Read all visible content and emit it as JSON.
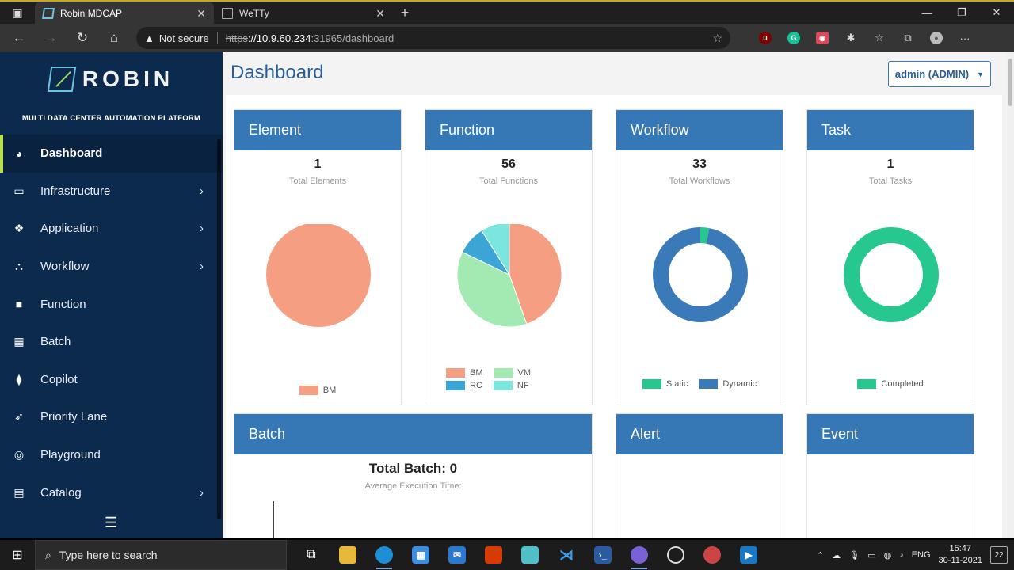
{
  "browser": {
    "tabs": [
      {
        "title": "Robin MDCAP",
        "active": true
      },
      {
        "title": "WeTTy",
        "active": false
      }
    ],
    "address": {
      "security": "Not secure",
      "scheme": "https",
      "host": "://10.9.60.234",
      "path": ":31965/dashboard"
    }
  },
  "sidebar": {
    "brand": "ROBIN",
    "tagline": "MULTI DATA CENTER AUTOMATION PLATFORM",
    "items": [
      {
        "label": "Dashboard",
        "icon": "dashboard-icon",
        "active": true,
        "submenu": false
      },
      {
        "label": "Infrastructure",
        "icon": "server-icon",
        "active": false,
        "submenu": true
      },
      {
        "label": "Application",
        "icon": "cubes-icon",
        "active": false,
        "submenu": true
      },
      {
        "label": "Workflow",
        "icon": "sitemap-icon",
        "active": false,
        "submenu": true
      },
      {
        "label": "Function",
        "icon": "briefcase-icon",
        "active": false,
        "submenu": false
      },
      {
        "label": "Batch",
        "icon": "batch-icon",
        "active": false,
        "submenu": false
      },
      {
        "label": "Copilot",
        "icon": "binoculars-icon",
        "active": false,
        "submenu": false
      },
      {
        "label": "Priority Lane",
        "icon": "rocket-icon",
        "active": false,
        "submenu": false
      },
      {
        "label": "Playground",
        "icon": "globe-icon",
        "active": false,
        "submenu": false
      },
      {
        "label": "Catalog",
        "icon": "catalog-icon",
        "active": false,
        "submenu": true
      }
    ]
  },
  "header": {
    "title": "Dashboard",
    "user": "admin (ADMIN)"
  },
  "cards": {
    "element": {
      "title": "Element",
      "count": "1",
      "caption": "Total Elements"
    },
    "function": {
      "title": "Function",
      "count": "56",
      "caption": "Total Functions"
    },
    "workflow": {
      "title": "Workflow",
      "count": "33",
      "caption": "Total Workflows"
    },
    "task": {
      "title": "Task",
      "count": "1",
      "caption": "Total Tasks"
    },
    "batch": {
      "title": "Batch",
      "total": "Total Batch: 0",
      "caption": "Average Execution Time:"
    },
    "alert": {
      "title": "Alert"
    },
    "event": {
      "title": "Event"
    }
  },
  "chart_data": [
    {
      "type": "pie",
      "title": "Element",
      "categories": [
        "BM"
      ],
      "values": [
        1
      ],
      "colors": [
        "#f59e82"
      ]
    },
    {
      "type": "pie",
      "title": "Function",
      "categories": [
        "BM",
        "VM",
        "RC",
        "NF"
      ],
      "values": [
        25,
        21,
        5,
        5
      ],
      "colors": [
        "#f59e82",
        "#a3eab2",
        "#3ba5d6",
        "#7be6dd"
      ]
    },
    {
      "type": "pie",
      "title": "Workflow",
      "donut": true,
      "categories": [
        "Static",
        "Dynamic"
      ],
      "values": [
        1,
        32
      ],
      "colors": [
        "#27c890",
        "#3a7ab8"
      ]
    },
    {
      "type": "pie",
      "title": "Task",
      "donut": true,
      "categories": [
        "Completed"
      ],
      "values": [
        1
      ],
      "colors": [
        "#27c890"
      ]
    }
  ],
  "taskbar": {
    "search_placeholder": "Type here to search",
    "lang": "ENG",
    "time": "15:47",
    "date": "30-11-2021",
    "notifications": "22"
  }
}
